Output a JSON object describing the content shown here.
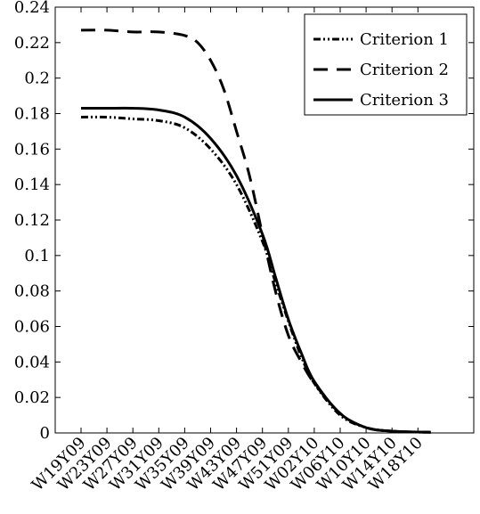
{
  "chart_data": {
    "type": "line",
    "categories": [
      "W19Y09",
      "W23Y09",
      "W27Y09",
      "W31Y09",
      "W35Y09",
      "W39Y09",
      "W43Y09",
      "W47Y09",
      "W51Y09",
      "W02Y10",
      "W06Y10",
      "W10Y10",
      "W14Y10",
      "W18Y10"
    ],
    "ylim": [
      0,
      0.24
    ],
    "yticks": [
      0,
      0.02,
      0.04,
      0.06,
      0.08,
      0.1,
      0.12,
      0.14,
      0.16,
      0.18,
      0.2,
      0.22,
      0.24
    ],
    "ytick_labels": [
      "0",
      "0.02",
      "0.04",
      "0.06",
      "0.08",
      "0.1",
      "0.12",
      "0.14",
      "0.16",
      "0.18",
      "0.2",
      "0.22",
      "0.24"
    ],
    "legend_position": "top-right",
    "series": [
      {
        "name": "Criterion 1",
        "style": "dash-dot-dot",
        "x": [
          0,
          1,
          2,
          3,
          4,
          5,
          6,
          7,
          7.5,
          8,
          8.5,
          9,
          10,
          11,
          12,
          13,
          13.5
        ],
        "values": [
          0.178,
          0.178,
          0.177,
          0.176,
          0.172,
          0.16,
          0.14,
          0.108,
          0.085,
          0.063,
          0.043,
          0.028,
          0.01,
          0.003,
          0.001,
          0.0005,
          0.0004
        ]
      },
      {
        "name": "Criterion 2",
        "style": "long-dash",
        "x": [
          0,
          1,
          2,
          3,
          4,
          4.5,
          5,
          5.5,
          6,
          6.5,
          7,
          7.5,
          8,
          8.5,
          9,
          10,
          11,
          12,
          13,
          13.5
        ],
        "values": [
          0.227,
          0.227,
          0.226,
          0.226,
          0.224,
          0.22,
          0.21,
          0.194,
          0.17,
          0.145,
          0.112,
          0.08,
          0.055,
          0.04,
          0.028,
          0.011,
          0.003,
          0.001,
          0.0005,
          0.0004
        ]
      },
      {
        "name": "Criterion 3",
        "style": "solid",
        "x": [
          0,
          1,
          2,
          3,
          4,
          5,
          6,
          7,
          7.5,
          8,
          8.5,
          9,
          10,
          11,
          12,
          13,
          13.5
        ],
        "values": [
          0.183,
          0.183,
          0.183,
          0.182,
          0.178,
          0.166,
          0.145,
          0.112,
          0.088,
          0.064,
          0.045,
          0.029,
          0.011,
          0.003,
          0.001,
          0.0005,
          0.0004
        ]
      }
    ],
    "colors": {
      "line": "#000000",
      "background": "#ffffff"
    }
  }
}
